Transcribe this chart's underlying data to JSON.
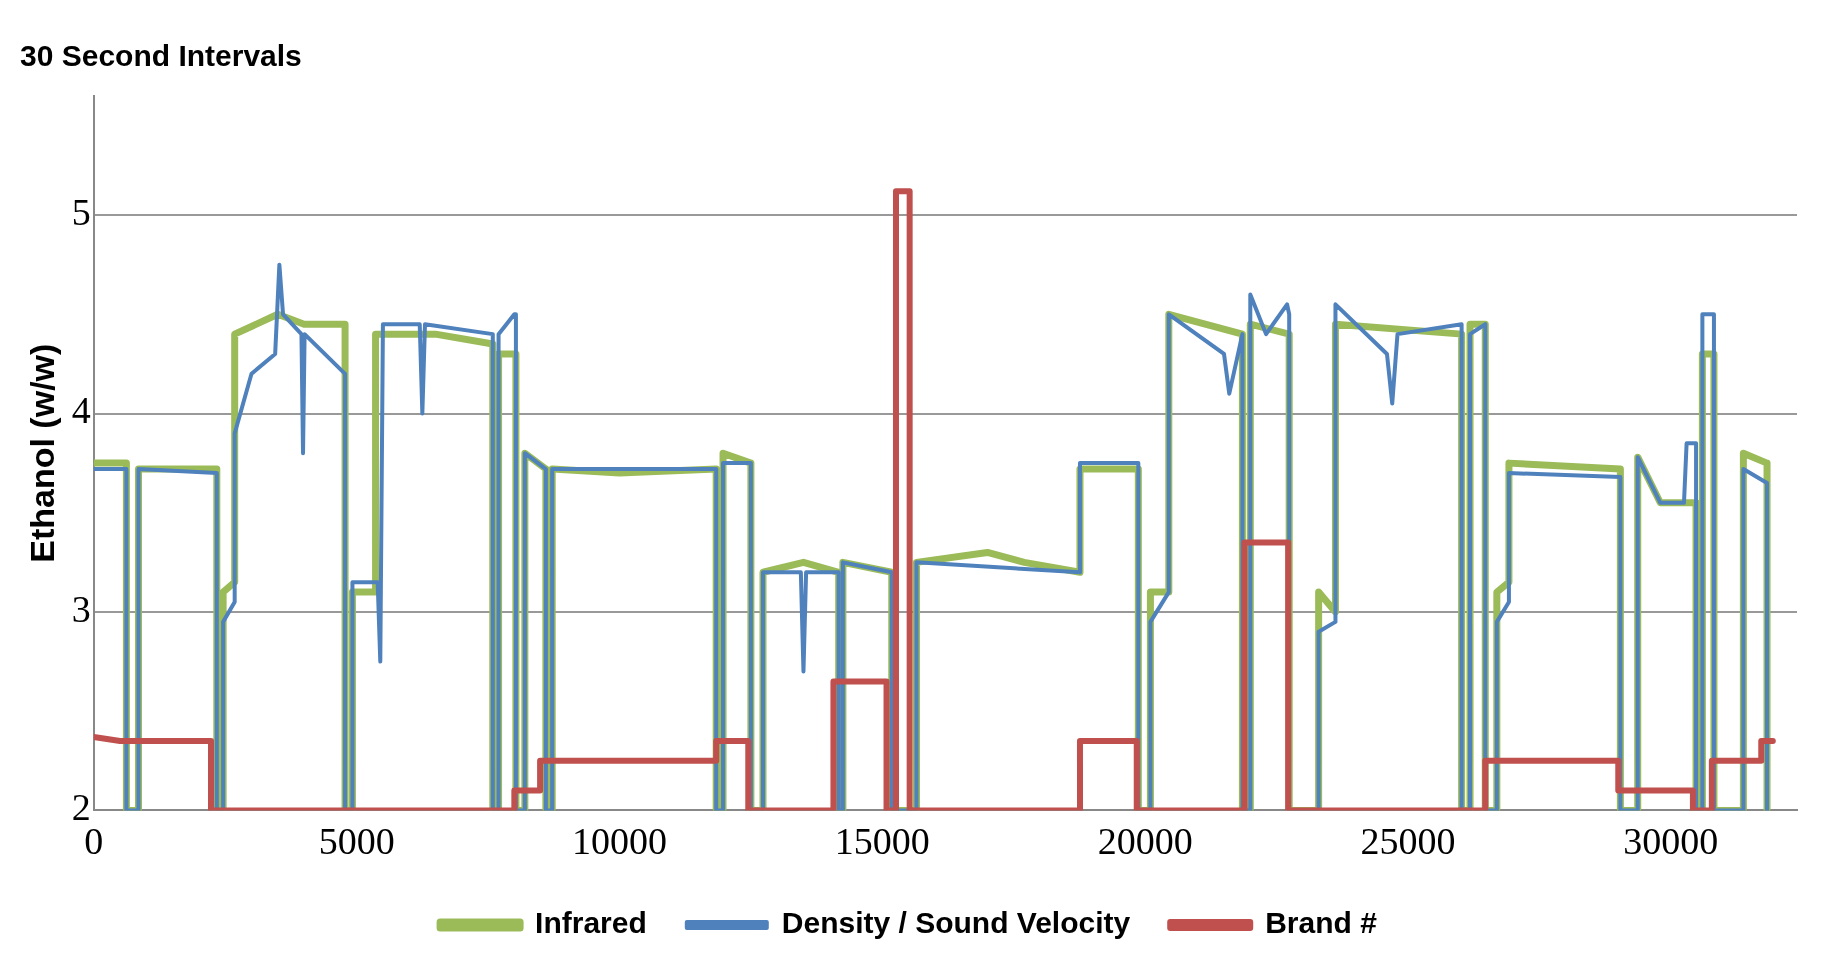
{
  "chart_data": {
    "type": "line",
    "title": "30 Second Intervals",
    "ylabel": "Ethanol (w/w)",
    "xlim": [
      0,
      32400
    ],
    "xticks": [
      0,
      5000,
      10000,
      15000,
      20000,
      25000,
      30000
    ],
    "ylim": [
      2,
      5.6
    ],
    "yticks": [
      2,
      3,
      4,
      5
    ],
    "grid": "y",
    "legend": "bottom",
    "marker": "none",
    "line_style": "solid",
    "series": [
      {
        "name": "Infrared",
        "color": "#9bbb59",
        "x": [
          0,
          620,
          620,
          850,
          850,
          2340,
          2340,
          2460,
          2460,
          2680,
          2680,
          3500,
          4000,
          4780,
          4780,
          4920,
          4920,
          5360,
          5360,
          6500,
          7590,
          7590,
          7700,
          7700,
          8030,
          8030,
          8200,
          8200,
          8600,
          8600,
          8720,
          8720,
          10000,
          11840,
          11840,
          11970,
          11970,
          12500,
          12500,
          12730,
          12730,
          13500,
          14170,
          14170,
          14250,
          14250,
          15180,
          15180,
          15650,
          15650,
          17000,
          17700,
          18760,
          18760,
          19870,
          19870,
          20100,
          20100,
          20450,
          20450,
          21850,
          21850,
          22000,
          22000,
          22740,
          22740,
          23300,
          23300,
          23620,
          23620,
          26020,
          26020,
          26180,
          26180,
          26470,
          26470,
          26690,
          26690,
          26920,
          26920,
          29040,
          29040,
          29370,
          29370,
          29800,
          30380,
          30480,
          30480,
          30600,
          30600,
          30820,
          30820,
          31380,
          31380,
          31830,
          31830
        ],
        "values": [
          3.75,
          3.75,
          2,
          2,
          3.72,
          3.72,
          2,
          2,
          3.1,
          3.15,
          4.4,
          4.5,
          4.45,
          4.45,
          2,
          2,
          3.1,
          3.1,
          4.4,
          4.4,
          4.35,
          2,
          2,
          4.3,
          4.3,
          2,
          2,
          3.8,
          3.72,
          2,
          2,
          3.72,
          3.7,
          3.72,
          2,
          2,
          3.8,
          3.75,
          2,
          2,
          3.2,
          3.25,
          3.2,
          2,
          2,
          3.25,
          3.2,
          2,
          2,
          3.25,
          3.3,
          3.25,
          3.2,
          3.72,
          3.72,
          2,
          2,
          3.1,
          3.1,
          4.5,
          4.4,
          2,
          2,
          4.45,
          4.4,
          2,
          2,
          3.1,
          3.0,
          4.45,
          4.4,
          2,
          2,
          4.45,
          4.45,
          2,
          2,
          3.1,
          3.15,
          3.75,
          3.72,
          2,
          2,
          3.78,
          3.55,
          3.55,
          3.55,
          2,
          2,
          4.3,
          4.3,
          2,
          2,
          3.8,
          3.75,
          2
        ]
      },
      {
        "name": "Density / Sound Velocity",
        "color": "#4f81bd",
        "x": [
          0,
          620,
          620,
          850,
          850,
          2340,
          2340,
          2460,
          2460,
          2680,
          2680,
          3000,
          3450,
          3530,
          3600,
          3950,
          3980,
          4010,
          4780,
          4780,
          4920,
          4920,
          5400,
          5450,
          5500,
          6200,
          6250,
          6300,
          7590,
          7590,
          7700,
          7700,
          8000,
          8030,
          8030,
          8200,
          8200,
          8600,
          8600,
          8720,
          8720,
          11840,
          11840,
          11970,
          11970,
          12500,
          12500,
          12730,
          12730,
          13450,
          13500,
          13550,
          14170,
          14170,
          14250,
          14250,
          15180,
          15180,
          15650,
          15650,
          18760,
          18760,
          19870,
          19870,
          20100,
          20100,
          20450,
          20450,
          21500,
          21600,
          21850,
          21850,
          22000,
          22000,
          22300,
          22700,
          22740,
          22740,
          23300,
          23300,
          23620,
          23620,
          24600,
          24700,
          24800,
          26020,
          26020,
          26180,
          26180,
          26470,
          26470,
          26690,
          26690,
          26920,
          26920,
          29040,
          29040,
          29370,
          29370,
          29800,
          30250,
          30300,
          30480,
          30480,
          30600,
          30600,
          30820,
          30820,
          31380,
          31380,
          31830,
          31830
        ],
        "values": [
          3.72,
          3.72,
          2,
          2,
          3.72,
          3.7,
          2,
          2,
          2.95,
          3.05,
          3.9,
          4.2,
          4.3,
          4.75,
          4.5,
          4.4,
          3.8,
          4.4,
          4.2,
          2,
          2,
          3.15,
          3.15,
          2.75,
          4.45,
          4.45,
          4.0,
          4.45,
          4.4,
          2,
          2,
          4.4,
          4.5,
          4.5,
          2,
          2,
          3.8,
          3.72,
          2,
          2,
          3.72,
          3.72,
          2,
          2,
          3.75,
          3.75,
          2,
          2,
          3.2,
          3.2,
          2.7,
          3.2,
          3.2,
          2,
          2,
          3.25,
          3.2,
          2,
          2,
          3.25,
          3.2,
          3.75,
          3.75,
          2,
          2,
          2.95,
          3.1,
          4.5,
          4.3,
          4.1,
          4.4,
          2,
          2,
          4.6,
          4.4,
          4.55,
          4.5,
          2,
          2,
          2.9,
          2.95,
          4.55,
          4.3,
          4.05,
          4.4,
          4.45,
          2,
          2,
          4.4,
          4.45,
          2,
          2,
          2.95,
          3.05,
          3.7,
          3.68,
          2,
          2,
          3.78,
          3.55,
          3.55,
          3.85,
          3.85,
          2,
          2,
          4.5,
          4.5,
          2,
          2,
          3.72,
          3.65,
          2
        ]
      },
      {
        "name": "Brand #",
        "color": "#c0504d",
        "x": [
          0,
          500,
          2230,
          2230,
          8000,
          8000,
          8490,
          8490,
          11840,
          11840,
          12450,
          12450,
          14070,
          14070,
          15080,
          15080,
          15260,
          15260,
          15520,
          15520,
          18760,
          18760,
          19840,
          19840,
          21890,
          21890,
          22720,
          22720,
          26470,
          26470,
          29000,
          29000,
          30420,
          30420,
          30780,
          30780,
          31720,
          31720,
          31940
        ],
        "values": [
          2.37,
          2.35,
          2.35,
          2,
          2,
          2.1,
          2.1,
          2.25,
          2.25,
          2.35,
          2.35,
          2,
          2,
          2.65,
          2.65,
          2,
          2,
          5.12,
          5.12,
          2,
          2,
          2.35,
          2.35,
          2,
          2,
          3.35,
          3.35,
          2,
          2,
          2.25,
          2.25,
          2.1,
          2.1,
          2,
          2,
          2.25,
          2.25,
          2.35,
          2.35
        ]
      }
    ]
  }
}
